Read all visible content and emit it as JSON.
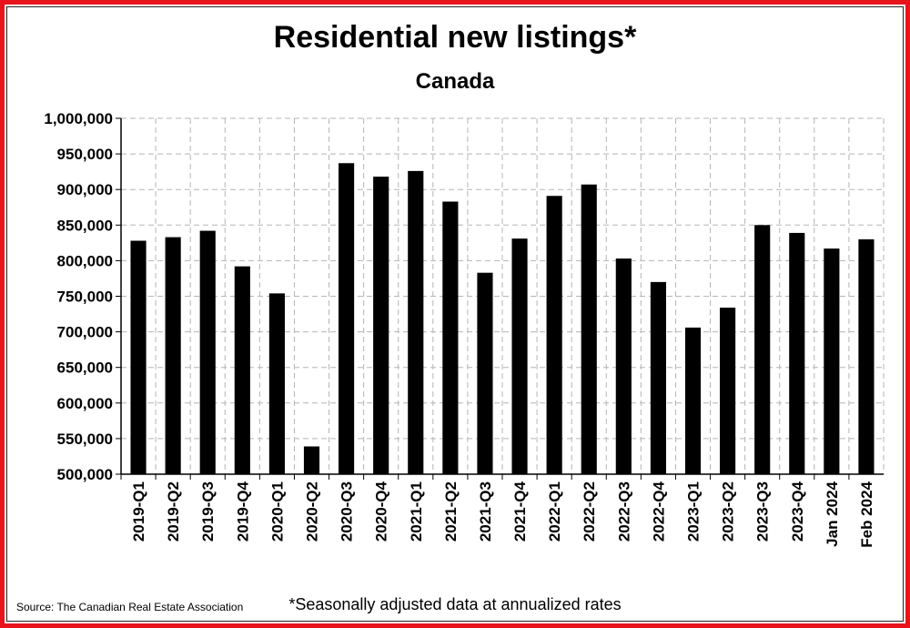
{
  "chart_data": {
    "type": "bar",
    "title": "Residential new listings*",
    "subtitle": "Canada",
    "xlabel": "",
    "ylabel": "",
    "categories": [
      "2019-Q1",
      "2019-Q2",
      "2019-Q3",
      "2019-Q4",
      "2020-Q1",
      "2020-Q2",
      "2020-Q3",
      "2020-Q4",
      "2021-Q1",
      "2021-Q2",
      "2021-Q3",
      "2021-Q4",
      "2022-Q1",
      "2022-Q2",
      "2022-Q3",
      "2022-Q4",
      "2023-Q1",
      "2023-Q2",
      "2023-Q3",
      "2023-Q4",
      "Jan 2024",
      "Feb 2024"
    ],
    "values": [
      828000,
      833000,
      842000,
      792000,
      754000,
      539000,
      937000,
      918000,
      926000,
      883000,
      783000,
      831000,
      891000,
      907000,
      803000,
      770000,
      706000,
      734000,
      850000,
      839000,
      817000,
      830000
    ],
    "ylim": [
      500000,
      1000000
    ],
    "y_ticks": [
      500000,
      550000,
      600000,
      650000,
      700000,
      750000,
      800000,
      850000,
      900000,
      950000,
      1000000
    ],
    "y_tick_labels": [
      "500,000",
      "550,000",
      "600,000",
      "650,000",
      "700,000",
      "750,000",
      "800,000",
      "850,000",
      "900,000",
      "950,000",
      "1,000,000"
    ],
    "grid": true,
    "bar_color": "#000000",
    "grid_color": "#b5b5b5",
    "source": "Source: The Canadian Real Estate Association",
    "footnote": "*Seasonally adjusted data at annualized rates"
  },
  "frame": {
    "border_color": "#e8141b"
  }
}
